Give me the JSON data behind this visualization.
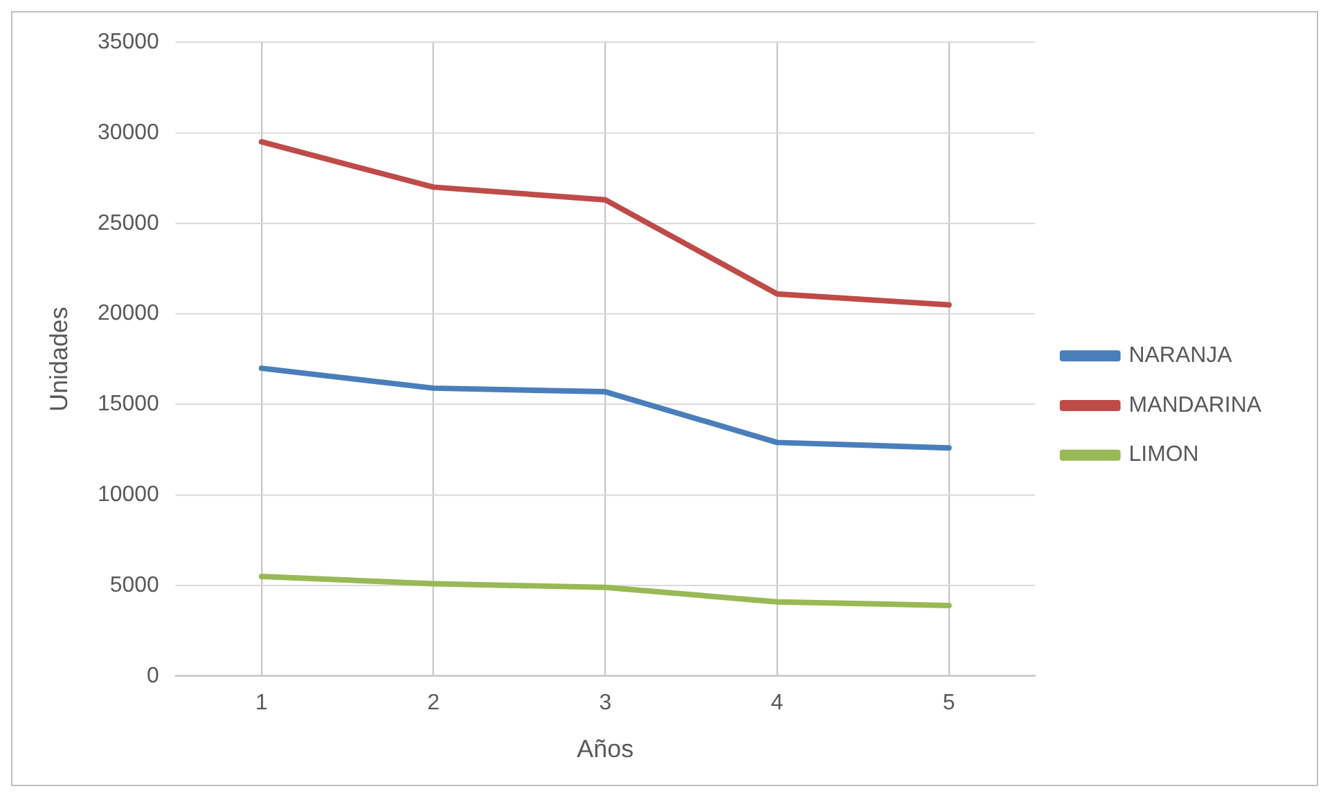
{
  "chart_data": {
    "type": "line",
    "xlabel": "Años",
    "ylabel": "Unidades",
    "categories": [
      "1",
      "2",
      "3",
      "4",
      "5"
    ],
    "series": [
      {
        "name": "NARANJA",
        "color": "#4a7ebb",
        "values": [
          17000,
          15900,
          15700,
          12900,
          12600
        ]
      },
      {
        "name": "MANDARINA",
        "color": "#be4b48",
        "values": [
          29500,
          27000,
          26300,
          21100,
          20500
        ]
      },
      {
        "name": "LIMON",
        "color": "#98b954",
        "values": [
          5500,
          5100,
          4900,
          4100,
          3900
        ]
      }
    ],
    "ylim": [
      0,
      35000
    ],
    "yticks": [
      0,
      5000,
      10000,
      15000,
      20000,
      25000,
      30000,
      35000
    ],
    "grid": true,
    "legend": "right",
    "marker": "none",
    "line_style": "solid"
  }
}
